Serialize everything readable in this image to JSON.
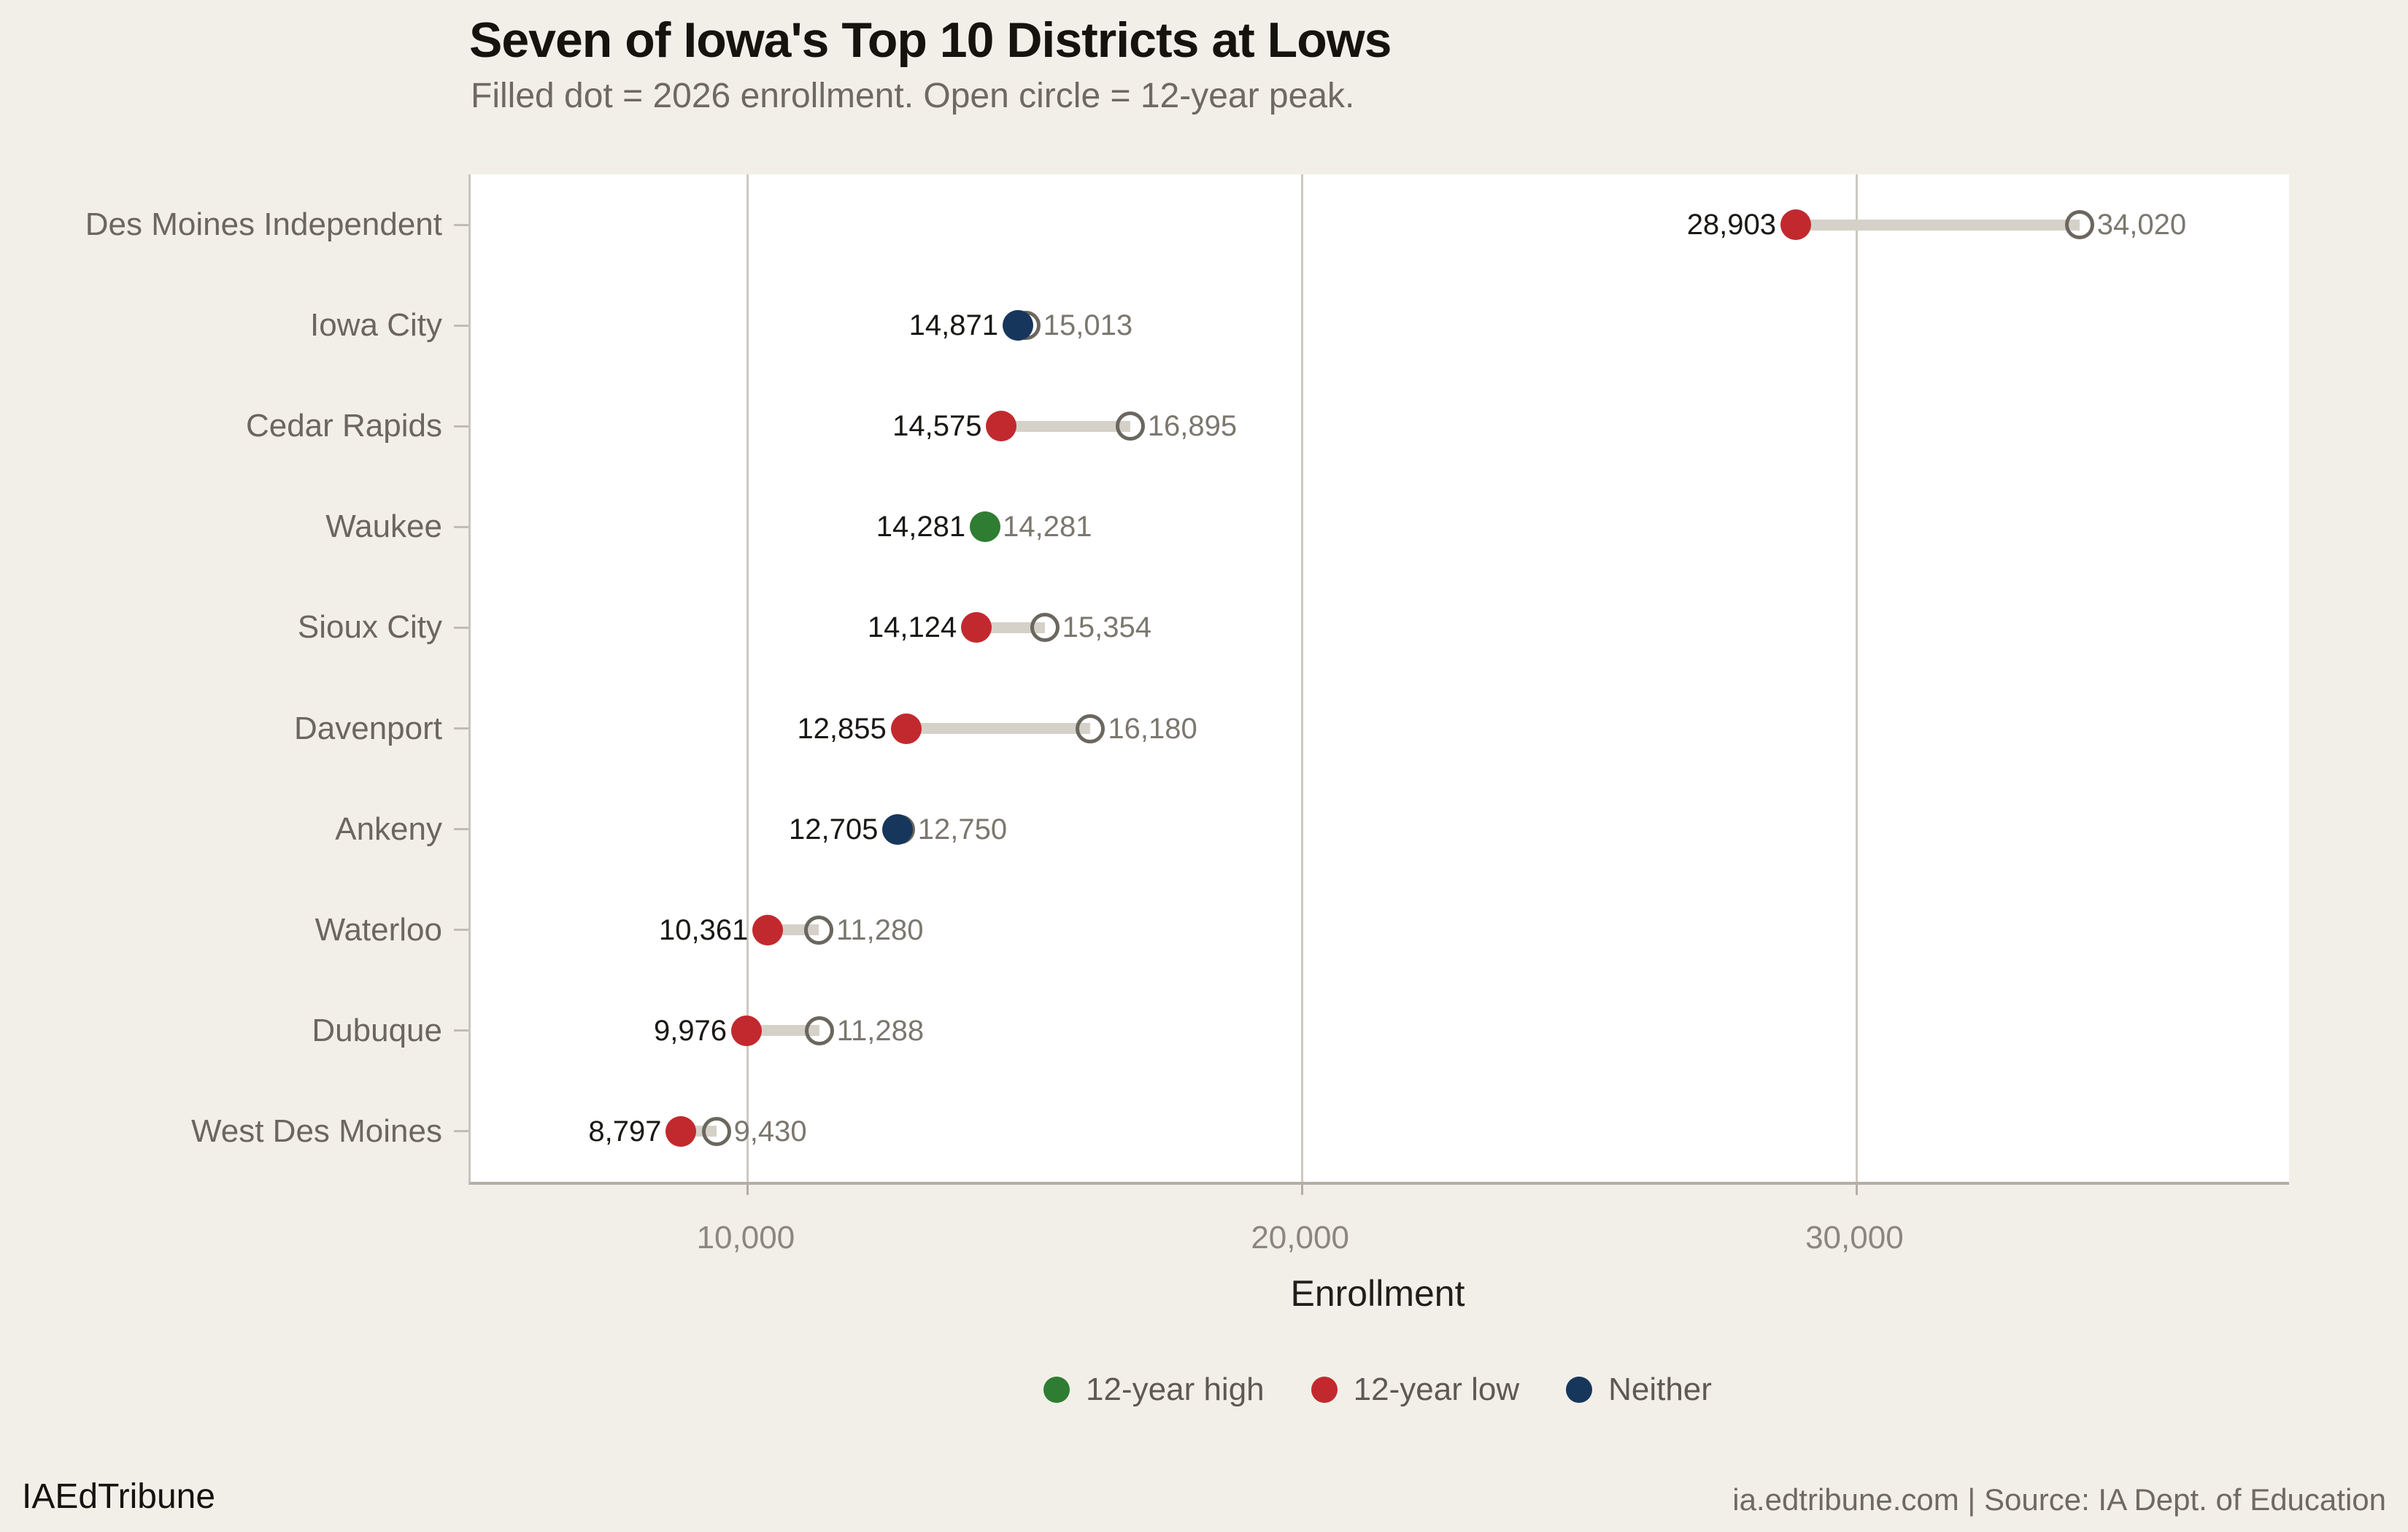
{
  "header": {
    "title": "Seven of Iowa's Top 10 Districts at Lows",
    "subtitle": "Filled dot = 2026 enrollment. Open circle = 12-year peak."
  },
  "chart_data": {
    "type": "dumbbell",
    "title": "Seven of Iowa's Top 10 Districts at Lows",
    "subtitle": "Filled dot = 2026 enrollment. Open circle = 12-year peak.",
    "xlabel": "Enrollment",
    "xlim": [
      5000,
      37800
    ],
    "grid": "vertical-only",
    "x_ticks": [
      {
        "value": 10000,
        "label": "10,000"
      },
      {
        "value": 20000,
        "label": "20,000"
      },
      {
        "value": 30000,
        "label": "30,000"
      }
    ],
    "rows": [
      {
        "district": "Des Moines Independent",
        "current": 28903,
        "current_label": "28,903",
        "peak": 34020,
        "peak_label": "34,020",
        "status": "12-year low"
      },
      {
        "district": "Iowa City",
        "current": 14871,
        "current_label": "14,871",
        "peak": 15013,
        "peak_label": "15,013",
        "status": "Neither"
      },
      {
        "district": "Cedar Rapids",
        "current": 14575,
        "current_label": "14,575",
        "peak": 16895,
        "peak_label": "16,895",
        "status": "12-year low"
      },
      {
        "district": "Waukee",
        "current": 14281,
        "current_label": "14,281",
        "peak": 14281,
        "peak_label": "14,281",
        "status": "12-year high"
      },
      {
        "district": "Sioux City",
        "current": 14124,
        "current_label": "14,124",
        "peak": 15354,
        "peak_label": "15,354",
        "status": "12-year low"
      },
      {
        "district": "Davenport",
        "current": 12855,
        "current_label": "12,855",
        "peak": 16180,
        "peak_label": "16,180",
        "status": "12-year low"
      },
      {
        "district": "Ankeny",
        "current": 12705,
        "current_label": "12,705",
        "peak": 12750,
        "peak_label": "12,750",
        "status": "Neither"
      },
      {
        "district": "Waterloo",
        "current": 10361,
        "current_label": "10,361",
        "peak": 11280,
        "peak_label": "11,280",
        "status": "12-year low"
      },
      {
        "district": "Dubuque",
        "current": 9976,
        "current_label": "9,976",
        "peak": 11288,
        "peak_label": "11,288",
        "status": "12-year low"
      },
      {
        "district": "West Des Moines",
        "current": 8797,
        "current_label": "8,797",
        "peak": 9430,
        "peak_label": "9,430",
        "status": "12-year low"
      }
    ],
    "legend": [
      {
        "label": "12-year high",
        "color": "#2E7D32"
      },
      {
        "label": "12-year low",
        "color": "#C2292E"
      },
      {
        "label": "Neither",
        "color": "#17365C"
      }
    ],
    "status_colors": {
      "12-year high": "#2E7D32",
      "12-year low": "#C2292E",
      "Neither": "#17365C"
    },
    "legend_position": "bottom-center"
  },
  "colors": {
    "background": "#F2EFE9",
    "plot_background": "#FFFFFF",
    "connector": "#D6D1C8",
    "open_circle_stroke": "#6B675F",
    "gridline": "#CDC9C1",
    "axis_line": "#B3AFA7",
    "value_label_current": "#1A1814",
    "value_label_peak": "#7B776F",
    "category_label": "#6B675F",
    "tick_label": "#8B8780"
  },
  "footer": {
    "brand": "IAEdTribune",
    "source": "ia.edtribune.com | Source: IA Dept. of Education"
  }
}
